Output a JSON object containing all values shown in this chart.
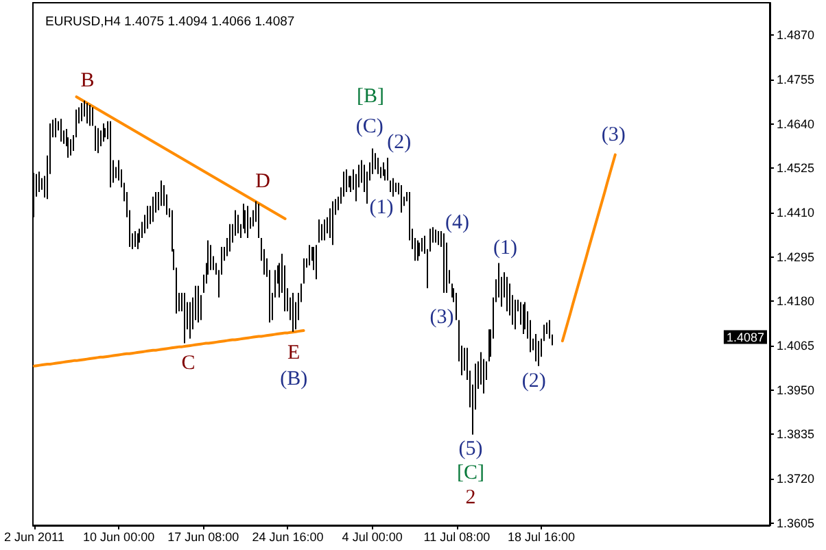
{
  "chart_data": {
    "type": "bar",
    "title": "EURUSD,H4 1.4075 1.4094 1.4066 1.4087",
    "color": "#000000",
    "categories": [
      "2 Jun 2011",
      null,
      null,
      null,
      null,
      null,
      null,
      null,
      null,
      null,
      null,
      null,
      null,
      null,
      null,
      null,
      null,
      null,
      null,
      null,
      null,
      null,
      null,
      null,
      null,
      null,
      null,
      null,
      null,
      null,
      null,
      null,
      "10 Jun 00:00",
      null,
      null,
      null,
      null,
      null,
      null,
      null,
      null,
      null,
      null,
      null,
      null,
      null,
      null,
      null,
      null,
      null,
      null,
      null,
      null,
      null,
      null,
      null,
      null,
      null,
      null,
      null,
      null,
      null,
      null,
      null,
      "17 Jun 08:00",
      null,
      null,
      null,
      null,
      null,
      null,
      null,
      null,
      null,
      null,
      null,
      null,
      null,
      null,
      null,
      null,
      null,
      null,
      null,
      null,
      null,
      null,
      null,
      null,
      null,
      null,
      null,
      null,
      null,
      null,
      null,
      "24 Jun 16:00",
      null,
      null,
      null,
      null,
      null,
      null,
      null,
      null,
      null,
      null,
      null,
      null,
      null,
      null,
      null,
      null,
      null,
      null,
      null,
      null,
      null,
      null,
      null,
      null,
      null,
      null,
      null,
      null,
      null,
      null,
      null,
      "4 Jul 00:00",
      null,
      null,
      null,
      null,
      null,
      null,
      null,
      null,
      null,
      null,
      null,
      null,
      null,
      null,
      null,
      null,
      null,
      null,
      null,
      null,
      null,
      null,
      null,
      null,
      null,
      null,
      null,
      null,
      null,
      null,
      null,
      "11 Jul 08:00",
      null,
      null,
      null,
      null,
      null,
      null,
      null,
      null,
      null,
      null,
      null,
      null,
      null,
      null,
      null,
      null,
      null,
      null,
      null,
      null,
      null,
      null,
      null,
      null,
      null,
      null,
      null,
      null,
      null,
      null,
      null,
      "18 Jul 16:00",
      null,
      null,
      null,
      null,
      null,
      null,
      null,
      null,
      null,
      null,
      null,
      null,
      null,
      null,
      null,
      null,
      null,
      null,
      null,
      null,
      null,
      null,
      null,
      null,
      null,
      null,
      null,
      null,
      null,
      null,
      null,
      null,
      null,
      null,
      null,
      null,
      null,
      null,
      null,
      null,
      null,
      null,
      null,
      null,
      null,
      null,
      null,
      null,
      null,
      null,
      null,
      null,
      null,
      null,
      null,
      null,
      null,
      null,
      null,
      null,
      null,
      null,
      null,
      null,
      null,
      null,
      null,
      null,
      null,
      null,
      null,
      null,
      null,
      null,
      null,
      null,
      null,
      null,
      null,
      null,
      null,
      null,
      null,
      null,
      null,
      null
    ],
    "base": [
      1.4398,
      1.4451,
      1.4463,
      1.4469,
      1.4449,
      1.4445,
      1.451,
      1.4605,
      1.4605,
      1.4623,
      1.4594,
      1.4588,
      1.4582,
      1.4552,
      1.4558,
      1.457,
      1.4605,
      1.4641,
      1.4647,
      1.4659,
      1.4641,
      1.4635,
      1.4635,
      1.457,
      1.4564,
      1.4582,
      1.4594,
      1.4605,
      1.46,
      1.4475,
      1.4487,
      1.4499,
      1.4493,
      1.4475,
      1.4439,
      1.4398,
      1.4321,
      1.4315,
      1.4321,
      1.4315,
      1.4332,
      1.4344,
      1.4356,
      1.4368,
      1.438,
      1.4386,
      1.441,
      1.4416,
      1.4427,
      1.4427,
      1.4404,
      1.4398,
      1.4309,
      1.4261,
      1.4148,
      1.4154,
      1.4154,
      1.4071,
      1.4107,
      1.4083,
      1.4107,
      1.4131,
      1.4125,
      1.4131,
      1.4202,
      1.4226,
      1.4249,
      1.4261,
      1.4261,
      1.4249,
      1.419,
      1.4249,
      1.4285,
      1.4297,
      1.4309,
      1.4332,
      1.435,
      1.4356,
      1.4344,
      1.4368,
      1.4356,
      1.4344,
      1.4368,
      1.4374,
      1.4386,
      1.4344,
      1.4285,
      1.4249,
      1.4243,
      1.4125,
      1.4131,
      1.419,
      1.4226,
      1.419,
      1.4202,
      1.4154,
      1.4154,
      1.4131,
      1.4101,
      1.4107,
      1.4131,
      1.4178,
      1.4226,
      1.4267,
      1.4273,
      1.4285,
      1.4261,
      1.4237,
      1.4332,
      1.4338,
      1.4338,
      1.4356,
      1.4344,
      1.4326,
      1.4404,
      1.4416,
      1.4433,
      1.4451,
      1.4463,
      1.4475,
      1.4463,
      1.4469,
      1.4439,
      1.4475,
      1.4487,
      1.4463,
      1.4433,
      1.4493,
      1.451,
      1.4522,
      1.451,
      1.4499,
      1.4505,
      1.4493,
      1.4493,
      1.4463,
      1.4451,
      1.4463,
      1.4457,
      1.441,
      1.4427,
      1.4439,
      1.4338,
      1.4315,
      1.4285,
      1.4285,
      1.4297,
      1.4309,
      1.4303,
      1.4214,
      1.4309,
      1.4332,
      1.4332,
      1.4326,
      1.4321,
      1.4202,
      1.4202,
      1.4226,
      1.419,
      1.4178,
      1.4131,
      1.4024,
      1.3988,
      1.4,
      1.3976,
      1.3905,
      1.3834,
      1.3899,
      1.3953,
      1.3964,
      1.3941,
      1.3976,
      1.4024,
      1.4036,
      1.4083,
      1.4178,
      1.419,
      1.4166,
      1.419,
      1.4154,
      1.4143,
      1.4119,
      1.4107,
      1.4154,
      1.4119,
      1.4095,
      1.4107,
      1.4083,
      1.4048,
      1.4053,
      1.4024,
      1.4012,
      1.4036,
      1.4077,
      1.4095,
      1.4083,
      1.4066,
      null,
      null,
      null,
      null,
      null,
      null,
      null,
      null,
      null,
      null,
      null,
      null,
      null,
      null,
      null,
      null,
      null,
      null,
      null,
      null,
      null,
      null,
      null,
      null,
      null,
      null,
      null,
      null,
      null,
      null,
      null,
      null,
      null,
      null,
      null,
      null,
      null,
      null,
      null,
      null,
      null,
      null,
      null,
      null,
      null,
      null,
      null,
      null,
      null,
      null,
      null,
      null,
      null,
      null,
      null,
      null,
      null,
      null,
      null,
      null,
      null,
      null,
      null,
      null,
      null,
      null,
      null,
      null,
      null,
      null,
      null,
      null,
      null,
      null,
      null,
      null,
      null,
      null,
      null,
      null,
      null,
      null
    ],
    "values": [
      0.0115,
      0.0059,
      0.0053,
      0.003,
      0.0056,
      0.0113,
      0.0131,
      0.0046,
      0.005,
      0.0024,
      0.0059,
      0.0035,
      0.0045,
      0.0053,
      0.0042,
      0.0041,
      0.0072,
      0.0042,
      0.0047,
      0.0041,
      0.0053,
      0.0054,
      0.0048,
      0.0065,
      0.0065,
      0.0041,
      0.0047,
      0.0024,
      0.0047,
      0.0172,
      0.0059,
      0.0029,
      0.0053,
      0.0047,
      0.0048,
      0.0065,
      0.0095,
      0.0041,
      0.0041,
      0.0041,
      0.0036,
      0.0042,
      0.0048,
      0.0059,
      0.0047,
      0.0065,
      0.0053,
      0.0047,
      0.0066,
      0.0054,
      0.0053,
      0.0023,
      0.0107,
      0.0054,
      0.0119,
      0.0048,
      0.0048,
      0.0131,
      0.0071,
      0.0095,
      0.0083,
      0.0089,
      0.0095,
      0.0065,
      0.0047,
      0.0053,
      0.0089,
      0.0065,
      0.0036,
      0.003,
      0.0071,
      0.0072,
      0.0036,
      0.0047,
      0.0071,
      0.0048,
      0.0066,
      0.0048,
      0.0036,
      0.0065,
      0.006,
      0.0083,
      0.003,
      0.0042,
      0.0053,
      0.0089,
      0.0059,
      0.0066,
      0.0048,
      0.0136,
      0.0071,
      0.0071,
      0.0047,
      0.0089,
      0.0101,
      0.0119,
      0.006,
      0.0059,
      0.0101,
      0.0071,
      0.0071,
      0.0048,
      0.0065,
      0.0024,
      0.0053,
      0.0036,
      0.006,
      0.0089,
      0.006,
      0.0042,
      0.0054,
      0.0042,
      0.0077,
      0.0113,
      0.0041,
      0.0035,
      0.0042,
      0.0065,
      0.0059,
      0.003,
      0.0042,
      0.0053,
      0.0071,
      0.0059,
      0.0059,
      0.0071,
      0.0083,
      0.0047,
      0.0066,
      0.0042,
      0.0042,
      0.0029,
      0.0035,
      0.0029,
      0.0059,
      0.003,
      0.0048,
      0.0024,
      0.003,
      0.0071,
      0.0024,
      0.0024,
      0.0125,
      0.0053,
      0.0059,
      0.0053,
      0.0035,
      0.0035,
      0.0047,
      0.0101,
      0.0059,
      0.004,
      0.0034,
      0.0036,
      0.0041,
      0.0154,
      0.013,
      0.0035,
      0.0036,
      0.0036,
      0.0071,
      0.0107,
      0.0077,
      0.0059,
      0.0083,
      0.0095,
      0.013,
      0.0119,
      0.0071,
      0.0084,
      0.0089,
      0.0048,
      0.0083,
      0.0071,
      0.0107,
      0.0059,
      0.0089,
      0.0077,
      0.0065,
      0.0089,
      0.0083,
      0.0077,
      0.0077,
      0.003,
      0.0059,
      0.0077,
      0.0071,
      0.0071,
      0.0083,
      0.003,
      0.0071,
      0.0065,
      0.0047,
      0.0042,
      0.003,
      0.0048,
      0.0028,
      null,
      null,
      null,
      null,
      null,
      null,
      null,
      null,
      null,
      null,
      null,
      null,
      null,
      null,
      null,
      null,
      null,
      null,
      null,
      null,
      null,
      null,
      null,
      null,
      null,
      null,
      null,
      null,
      null,
      null,
      null,
      null,
      null,
      null,
      null,
      null,
      null,
      null,
      null,
      null,
      null,
      null,
      null,
      null,
      null,
      null,
      null,
      null,
      null,
      null,
      null,
      null,
      null,
      null,
      null,
      null,
      null,
      null,
      null,
      null,
      null,
      null,
      null,
      null,
      null,
      null,
      null,
      null,
      null,
      null,
      null,
      null,
      null,
      null,
      null,
      null,
      null,
      null,
      null,
      null,
      null,
      null
    ],
    "series": [
      {
        "type": "line",
        "color": "#ff8c00",
        "values": [
          null,
          null,
          null,
          null,
          null,
          null,
          null,
          null,
          null,
          null,
          null,
          null,
          null,
          null,
          null,
          null,
          1.471,
          1.4706,
          1.4702,
          1.4698,
          1.4694,
          1.469,
          1.4686,
          1.4682,
          1.4678,
          1.4674,
          1.467,
          1.4666,
          1.4662,
          1.4658,
          1.4654,
          1.465,
          1.4646,
          1.4642,
          1.4638,
          1.4634,
          1.463,
          1.4626,
          1.4622,
          1.4618,
          1.4614,
          1.461,
          1.4606,
          1.4602,
          1.4598,
          1.4594,
          1.459,
          1.4586,
          1.4582,
          1.4578,
          1.4574,
          1.457,
          1.4566,
          1.4562,
          1.4558,
          1.4554,
          1.455,
          1.4546,
          1.4542,
          1.4538,
          1.4534,
          1.453,
          1.4526,
          1.4522,
          1.4518,
          1.4514,
          1.451,
          1.4506,
          1.4502,
          1.4498,
          1.4494,
          1.449,
          1.4486,
          1.4482,
          1.4478,
          1.4474,
          1.447,
          1.4466,
          1.4462,
          1.4458,
          1.4454,
          1.445,
          1.4446,
          1.4442,
          1.4438,
          1.4434,
          1.443,
          1.4426,
          1.4422,
          1.4418,
          1.4414,
          1.441,
          1.4406,
          1.4402,
          1.4398,
          1.4394,
          null,
          null,
          null,
          null,
          null,
          null,
          null,
          null,
          null,
          null,
          null,
          null,
          null,
          null,
          null,
          null,
          null,
          null,
          null,
          null,
          null,
          null,
          null,
          null,
          null,
          null,
          null,
          null,
          null,
          null,
          null,
          null,
          null,
          null,
          null,
          null,
          null,
          null,
          null,
          null,
          null,
          null,
          null,
          null,
          null,
          null,
          null,
          null,
          null,
          null,
          null,
          null,
          null,
          null,
          null,
          null,
          null,
          null,
          null,
          null,
          null,
          null,
          null,
          null,
          null,
          null,
          null,
          null,
          null,
          null,
          null,
          null,
          null,
          null,
          null,
          null,
          null,
          null,
          null,
          null,
          null,
          null,
          null,
          null,
          null,
          null,
          null,
          null,
          null,
          null,
          null,
          null,
          null,
          null,
          null,
          null,
          null,
          null,
          null,
          null,
          null,
          null,
          null,
          null,
          null,
          null,
          null,
          null,
          null,
          null,
          null,
          null,
          null,
          null,
          null,
          null,
          null,
          null,
          null,
          null,
          null,
          null,
          null,
          null,
          null,
          null,
          null,
          null,
          null,
          null,
          null,
          null,
          null,
          null,
          null,
          null,
          null,
          null,
          null,
          null,
          null,
          null,
          null,
          null,
          null,
          null,
          null,
          null,
          null,
          null,
          null,
          null,
          null,
          null,
          null,
          null,
          null,
          null,
          null,
          null,
          null,
          null,
          null,
          null,
          null,
          null,
          null,
          null,
          null,
          null,
          null,
          null,
          null,
          null,
          null,
          null,
          null,
          null,
          null,
          null,
          null,
          null,
          null
        ]
      },
      {
        "type": "line",
        "color": "#ff8c00",
        "values": [
          1.4012,
          1.4013,
          1.4014,
          1.4015,
          1.4016,
          1.4017,
          1.4017,
          1.4018,
          1.4019,
          1.402,
          1.4021,
          1.4022,
          1.4023,
          1.4024,
          1.4025,
          1.4026,
          1.4026,
          1.4027,
          1.4028,
          1.4029,
          1.403,
          1.4031,
          1.4032,
          1.4033,
          1.4034,
          1.4035,
          1.4035,
          1.4036,
          1.4037,
          1.4038,
          1.4039,
          1.404,
          1.4041,
          1.4042,
          1.4043,
          1.4044,
          1.4044,
          1.4045,
          1.4046,
          1.4047,
          1.4048,
          1.4049,
          1.405,
          1.4051,
          1.4052,
          1.4053,
          1.4053,
          1.4054,
          1.4055,
          1.4056,
          1.4057,
          1.4058,
          1.4059,
          1.406,
          1.4061,
          1.4062,
          1.4062,
          1.4063,
          1.4064,
          1.4065,
          1.4066,
          1.4067,
          1.4068,
          1.4069,
          1.407,
          1.4071,
          1.4071,
          1.4072,
          1.4073,
          1.4074,
          1.4075,
          1.4076,
          1.4077,
          1.4078,
          1.4079,
          1.408,
          1.408,
          1.4081,
          1.4082,
          1.4083,
          1.4084,
          1.4085,
          1.4086,
          1.4087,
          1.4088,
          1.4089,
          1.4089,
          1.409,
          1.4091,
          1.4092,
          1.4093,
          1.4094,
          1.4095,
          1.4096,
          1.4097,
          1.4098,
          1.4098,
          1.4099,
          1.41,
          1.4101,
          1.4102,
          1.4103,
          1.4104,
          null,
          null,
          null,
          null,
          null,
          null,
          null,
          null,
          null,
          null,
          null,
          null,
          null,
          null,
          null,
          null,
          null,
          null,
          null,
          null,
          null,
          null,
          null,
          null,
          null,
          null,
          null,
          null,
          null,
          null,
          null,
          null,
          null,
          null,
          null,
          null,
          null,
          null,
          null,
          null,
          null,
          null,
          null,
          null,
          null,
          null,
          null,
          null,
          null,
          null,
          null,
          null,
          null,
          null,
          null,
          null,
          null,
          null,
          null,
          null,
          null,
          null,
          null,
          null,
          null,
          null,
          null,
          null,
          null,
          null,
          null,
          null,
          null,
          null,
          null,
          null,
          null,
          null,
          null,
          null,
          null,
          null,
          null,
          null,
          null,
          null,
          null,
          null,
          null,
          null,
          null,
          null,
          null,
          null,
          null,
          null,
          null,
          null,
          null,
          null,
          null,
          null,
          null,
          null,
          null,
          null,
          null,
          null,
          null,
          null,
          null,
          null,
          null,
          null,
          null,
          null,
          null,
          null,
          null,
          null,
          null,
          null,
          null,
          null,
          null,
          null,
          null,
          null,
          null,
          null,
          null,
          null,
          null,
          null,
          null,
          null,
          null,
          null,
          null,
          null,
          null,
          null,
          null,
          null,
          null,
          null,
          null,
          null,
          null,
          null,
          null,
          null,
          null,
          null,
          null,
          null,
          null,
          null,
          null,
          null,
          null,
          null,
          null,
          null,
          null,
          null,
          null,
          null,
          null,
          null,
          null,
          null,
          null,
          null,
          null,
          null
        ]
      },
      {
        "type": "line",
        "color": "#ff8c00",
        "values": [
          null,
          null,
          null,
          null,
          null,
          null,
          null,
          null,
          null,
          null,
          null,
          null,
          null,
          null,
          null,
          null,
          null,
          null,
          null,
          null,
          null,
          null,
          null,
          null,
          null,
          null,
          null,
          null,
          null,
          null,
          null,
          null,
          null,
          null,
          null,
          null,
          null,
          null,
          null,
          null,
          null,
          null,
          null,
          null,
          null,
          null,
          null,
          null,
          null,
          null,
          null,
          null,
          null,
          null,
          null,
          null,
          null,
          null,
          null,
          null,
          null,
          null,
          null,
          null,
          null,
          null,
          null,
          null,
          null,
          null,
          null,
          null,
          null,
          null,
          null,
          null,
          null,
          null,
          null,
          null,
          null,
          null,
          null,
          null,
          null,
          null,
          null,
          null,
          null,
          null,
          null,
          null,
          null,
          null,
          null,
          null,
          null,
          null,
          null,
          null,
          null,
          null,
          null,
          null,
          null,
          null,
          null,
          null,
          null,
          null,
          null,
          null,
          null,
          null,
          null,
          null,
          null,
          null,
          null,
          null,
          null,
          null,
          null,
          null,
          null,
          null,
          null,
          null,
          null,
          null,
          null,
          null,
          null,
          null,
          null,
          null,
          null,
          null,
          null,
          null,
          null,
          null,
          null,
          null,
          null,
          null,
          null,
          null,
          null,
          null,
          null,
          null,
          null,
          null,
          null,
          null,
          null,
          null,
          null,
          null,
          null,
          null,
          null,
          null,
          null,
          null,
          null,
          null,
          null,
          null,
          null,
          null,
          null,
          null,
          null,
          null,
          null,
          null,
          null,
          null,
          null,
          null,
          null,
          null,
          null,
          null,
          null,
          null,
          null,
          null,
          null,
          null,
          null,
          null,
          null,
          null,
          null,
          null,
          null,
          null,
          1.4077,
          1.4101,
          1.4125,
          1.4149,
          1.4174,
          1.4198,
          1.4222,
          1.4246,
          1.427,
          1.4294,
          1.4319,
          1.4343,
          1.4367,
          1.4391,
          1.4415,
          1.4439,
          1.4463,
          1.4488,
          1.4512,
          1.4536,
          1.456,
          null,
          null,
          null,
          null,
          null,
          null,
          null,
          null,
          null,
          null,
          null,
          null,
          null,
          null,
          null,
          null,
          null,
          null,
          null,
          null,
          null,
          null,
          null,
          null,
          null,
          null,
          null,
          null,
          null,
          null,
          null,
          null,
          null,
          null,
          null,
          null,
          null,
          null,
          null,
          null,
          null,
          null,
          null,
          null,
          null,
          null,
          null,
          null,
          null,
          null,
          null,
          null,
          null,
          null,
          null,
          null,
          null,
          null
        ]
      }
    ],
    "ylim": [
      1.3599,
      1.4954
    ],
    "yticks": [
      1.3605,
      {
        "value": 1.372,
        "label": "1.3720"
      },
      1.3835,
      {
        "value": 1.395,
        "label": "1.3950"
      },
      1.4065,
      {
        "value": 1.418,
        "label": "1.4180"
      },
      1.4295,
      {
        "value": 1.441,
        "label": "1.4410"
      },
      1.4525,
      {
        "value": 1.464,
        "label": "1.4640"
      },
      1.4755,
      {
        "value": 1.487,
        "label": "1.4870"
      }
    ],
    "annotations": [
      "B",
      "C",
      "D",
      "E",
      "(B)",
      "[B]",
      "(C)",
      "(1)",
      "(2)",
      "(3)",
      "(4)",
      "(5)",
      "[C]",
      "2",
      "(1)",
      "(2)",
      "(3)",
      {
        "text": "1.4087",
        "y": 1.4087
      }
    ]
  }
}
